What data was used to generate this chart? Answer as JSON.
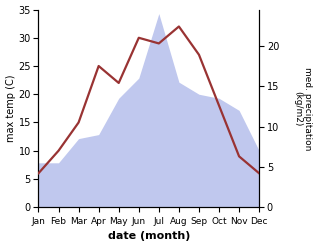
{
  "months": [
    "Jan",
    "Feb",
    "Mar",
    "Apr",
    "May",
    "Jun",
    "Jul",
    "Aug",
    "Sep",
    "Oct",
    "Nov",
    "Dec"
  ],
  "temperature": [
    6,
    10,
    15,
    25,
    22,
    30,
    29,
    32,
    27,
    18,
    9,
    6
  ],
  "precipitation": [
    5.5,
    5.5,
    8.5,
    9,
    13.5,
    16,
    24,
    15.5,
    14,
    13.5,
    12,
    7
  ],
  "temp_color": "#993333",
  "precip_fill_color": "#c0c8ee",
  "background_color": "#ffffff",
  "ylabel_left": "max temp (C)",
  "ylabel_right": "med. precipitation\n(kg/m2)",
  "xlabel": "date (month)",
  "ylim_left": [
    0,
    35
  ],
  "ylim_right": [
    0,
    24.5
  ],
  "yticks_left": [
    0,
    5,
    10,
    15,
    20,
    25,
    30,
    35
  ],
  "yticks_right": [
    0,
    5,
    10,
    15,
    20
  ],
  "temp_linewidth": 1.6,
  "figsize": [
    3.18,
    2.47
  ],
  "dpi": 100
}
